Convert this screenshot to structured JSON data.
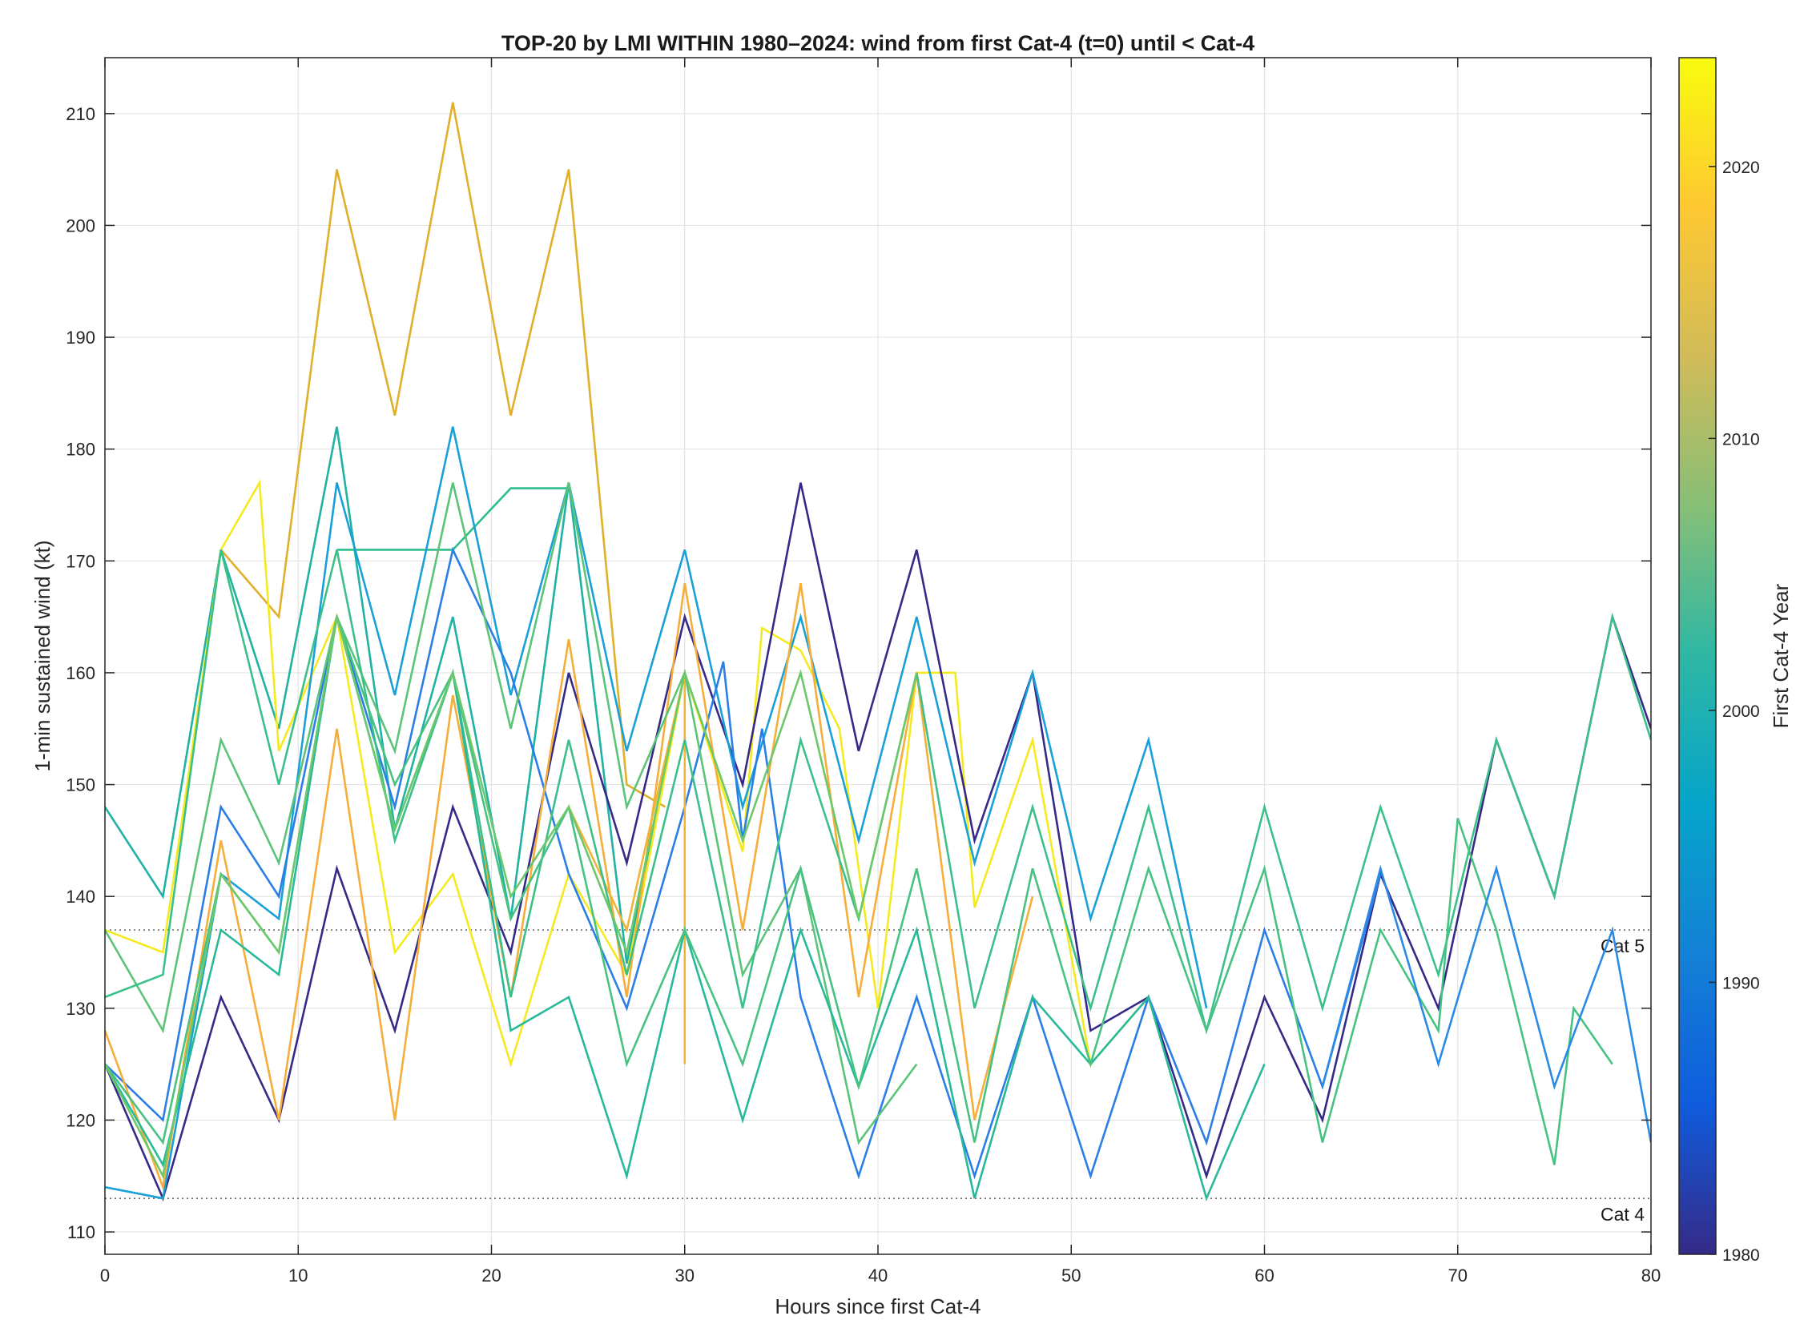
{
  "chart_data": {
    "type": "line",
    "title": "TOP-20 by LMI WITHIN 1980–2024: wind from first Cat-4 (t=0) until < Cat-4",
    "xlabel": "Hours since first Cat-4",
    "ylabel": "1-min sustained wind (kt)",
    "xlim": [
      0,
      80
    ],
    "ylim": [
      108,
      215
    ],
    "xticks": [
      0,
      10,
      20,
      30,
      40,
      50,
      60,
      70,
      80
    ],
    "yticks": [
      110,
      120,
      130,
      140,
      150,
      160,
      170,
      180,
      190,
      200,
      210
    ],
    "grid": true,
    "reference_lines": [
      {
        "label": "Cat 5",
        "y": 137
      },
      {
        "label": "Cat 4",
        "y": 113
      }
    ],
    "colorbar": {
      "label": "First Cat-4 Year",
      "range": [
        1980,
        2024
      ],
      "ticks": [
        1980,
        1990,
        2000,
        2010,
        2020
      ],
      "colormap": "parula"
    },
    "series": [
      {
        "year": 2015,
        "color": "#e0b02a",
        "x": [
          6,
          9,
          12,
          15,
          18,
          21,
          24,
          27,
          29
        ],
        "y": [
          171,
          165,
          205,
          183,
          211,
          183,
          205,
          150,
          148
        ]
      },
      {
        "year": 2005,
        "color": "#20b2a2",
        "x": [
          0,
          3,
          6,
          9,
          12,
          15,
          18,
          21,
          24,
          27,
          30
        ],
        "y": [
          148,
          140,
          171,
          155,
          182,
          146,
          165,
          138,
          177,
          134,
          160
        ]
      },
      {
        "year": 2006,
        "color": "#2dbf8a",
        "x": [
          12,
          13,
          18,
          21,
          22,
          24
        ],
        "y": [
          171,
          171,
          171,
          176.5,
          176.5,
          176.5
        ]
      },
      {
        "year": 2024,
        "color": "#f5ea1f",
        "x": [
          0,
          3,
          6,
          8,
          9,
          12,
          15,
          18,
          21,
          24,
          27,
          30,
          33,
          34,
          36,
          38,
          40,
          42,
          44,
          45,
          48,
          51,
          54
        ],
        "y": [
          137,
          135,
          171,
          177,
          153,
          165,
          135,
          142,
          125,
          142,
          133,
          160,
          144,
          164,
          162,
          155,
          130,
          160,
          160,
          139,
          154,
          125,
          131
        ]
      },
      {
        "year": 1981,
        "color": "#352a87",
        "x": [
          0,
          3,
          6,
          9,
          12,
          15,
          18,
          21,
          24,
          27,
          30,
          33,
          36,
          39,
          42,
          45,
          48,
          51,
          54,
          57,
          60,
          63,
          66,
          69,
          72,
          75,
          78,
          80
        ],
        "y": [
          125,
          113,
          131,
          120,
          142.5,
          128,
          148,
          135,
          160,
          143,
          165,
          150,
          177,
          153,
          171,
          145,
          160,
          128,
          131,
          115,
          131,
          120,
          142,
          130,
          154,
          140,
          165,
          155
        ]
      },
      {
        "year": 1998,
        "color": "#1aa0d8",
        "x": [
          0,
          3,
          6,
          9,
          12,
          15,
          18,
          21,
          24,
          27,
          30,
          33,
          36,
          39,
          42,
          45,
          48,
          51,
          54,
          57
        ],
        "y": [
          114,
          113,
          142,
          138,
          177,
          158,
          182,
          158,
          177,
          153,
          171,
          148,
          165,
          145,
          165,
          143,
          160,
          138,
          154,
          130
        ]
      },
      {
        "year": 1992,
        "color": "#2a7ee6",
        "x": [
          0,
          3,
          6,
          9,
          12,
          15,
          18,
          21,
          24,
          27,
          30,
          32,
          33,
          34,
          36,
          39,
          42,
          45,
          48,
          51,
          54,
          57,
          60,
          63,
          66
        ],
        "y": [
          125,
          120,
          148,
          140,
          165,
          148,
          171,
          160,
          142,
          130,
          148,
          161,
          145,
          155,
          131,
          115,
          131,
          115,
          131,
          115,
          131,
          118,
          137,
          123,
          142
        ]
      },
      {
        "year": 2018,
        "color": "#f5ae3a",
        "x": [
          0,
          3,
          6,
          9,
          12,
          15,
          18,
          21,
          24,
          27,
          30,
          33,
          36,
          39,
          42,
          45,
          48
        ],
        "y": [
          128,
          114,
          145,
          120,
          155,
          120,
          158,
          131,
          163,
          131,
          168,
          137,
          168,
          131,
          160,
          120,
          140
        ]
      },
      {
        "year": 2019,
        "color": "#f0b43a",
        "x": [
          24,
          27,
          30,
          30
        ],
        "y": [
          148,
          137,
          160,
          125
        ]
      },
      {
        "year": 2009,
        "color": "#5cc47a",
        "x": [
          0,
          3,
          6,
          9,
          12,
          15,
          18,
          21,
          24,
          27,
          30,
          33,
          36,
          39,
          42
        ],
        "y": [
          137,
          128,
          154,
          143,
          165,
          153,
          177,
          155,
          177,
          148,
          160,
          133,
          142.5,
          118,
          125
        ]
      },
      {
        "year": 2007,
        "color": "#3cc08a",
        "x": [
          0,
          3,
          6,
          9,
          12,
          15,
          18,
          21,
          24,
          27,
          30,
          33,
          36,
          39,
          42,
          45,
          48,
          51,
          54,
          57,
          60,
          63,
          66,
          69,
          72,
          75,
          78,
          80
        ],
        "y": [
          131,
          133,
          171,
          150,
          171,
          145,
          160,
          131,
          154,
          133,
          154,
          130,
          154,
          138,
          160,
          130,
          148,
          130,
          148,
          128,
          148,
          130,
          148,
          133,
          154,
          140,
          165,
          154
        ]
      },
      {
        "year": 2004,
        "color": "#28b998",
        "x": [
          0,
          3,
          6,
          9,
          12,
          15,
          18,
          21,
          24,
          27,
          30,
          33,
          36,
          39,
          42,
          45,
          48,
          51,
          54,
          57,
          60
        ],
        "y": [
          125,
          116,
          137,
          133,
          165,
          146,
          160,
          128,
          131,
          115,
          137,
          120,
          137,
          123,
          137,
          113,
          131,
          125,
          131,
          113,
          125
        ]
      },
      {
        "year": 2008,
        "color": "#48c282",
        "x": [
          0,
          3,
          6,
          9,
          12,
          15,
          18,
          21,
          24,
          27,
          30,
          33,
          36,
          39,
          42,
          45,
          48,
          51,
          54,
          57,
          60,
          63,
          66,
          69,
          70,
          72,
          75,
          76,
          78
        ],
        "y": [
          125,
          118,
          142,
          135,
          165,
          150,
          160,
          138,
          148,
          125,
          137,
          125,
          142.5,
          123,
          142.5,
          118,
          142.5,
          125,
          142.5,
          128,
          142.5,
          118,
          137,
          128,
          147,
          137,
          116,
          130,
          125
        ]
      },
      {
        "year": 1994,
        "color": "#2a8ae6",
        "x": [
          63,
          66,
          69,
          72,
          75,
          78,
          80
        ],
        "y": [
          123,
          142.5,
          125,
          142.5,
          123,
          137,
          118
        ]
      },
      {
        "year": 2010,
        "color": "#6cc86a",
        "x": [
          0,
          3,
          6,
          9,
          12,
          15,
          18,
          21,
          24,
          27,
          30,
          33,
          36,
          39,
          42
        ],
        "y": [
          125,
          115,
          142,
          135,
          165,
          146,
          160,
          140,
          148,
          135,
          160,
          145,
          160,
          138,
          160
        ]
      }
    ]
  }
}
